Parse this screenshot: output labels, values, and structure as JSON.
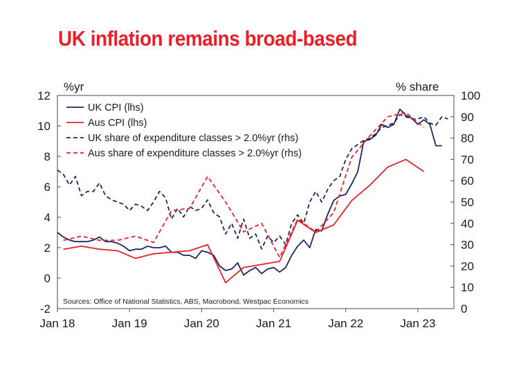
{
  "title": "UK inflation remains broad-based",
  "chart_data": {
    "type": "line",
    "title": "UK inflation remains broad-based",
    "y_left_label": "%yr",
    "y_right_label": "% share",
    "y_left_range": [
      -2,
      12
    ],
    "y_right_range": [
      0,
      100
    ],
    "y_left_ticks": [
      "-2",
      "0",
      "2",
      "4",
      "6",
      "8",
      "10",
      "12"
    ],
    "y_right_ticks": [
      "0",
      "10",
      "20",
      "30",
      "40",
      "50",
      "60",
      "70",
      "80",
      "90",
      "100"
    ],
    "x_range": [
      2018.0,
      2023.5
    ],
    "x_ticks": [
      {
        "x": 2018,
        "label": "Jan 18"
      },
      {
        "x": 2019,
        "label": "Jan 19"
      },
      {
        "x": 2020,
        "label": "Jan 20"
      },
      {
        "x": 2021,
        "label": "Jan 21"
      },
      {
        "x": 2022,
        "label": "Jan 22"
      },
      {
        "x": 2023,
        "label": "Jan 23"
      }
    ],
    "source": "Sources: Office of National Statistics, ABS, Macrobond, Westpac Economics",
    "grid": false,
    "legend_position": "top-left",
    "series": [
      {
        "name": "UK CPI (lhs)",
        "axis": "left",
        "color": "#1f2360",
        "dash": false,
        "points": [
          [
            2018.0,
            3.0
          ],
          [
            2018.083,
            2.7
          ],
          [
            2018.167,
            2.5
          ],
          [
            2018.25,
            2.4
          ],
          [
            2018.333,
            2.4
          ],
          [
            2018.417,
            2.4
          ],
          [
            2018.5,
            2.5
          ],
          [
            2018.583,
            2.7
          ],
          [
            2018.667,
            2.4
          ],
          [
            2018.75,
            2.4
          ],
          [
            2018.833,
            2.3
          ],
          [
            2018.917,
            2.1
          ],
          [
            2019.0,
            1.8
          ],
          [
            2019.083,
            1.9
          ],
          [
            2019.167,
            1.9
          ],
          [
            2019.25,
            2.1
          ],
          [
            2019.333,
            2.0
          ],
          [
            2019.417,
            2.0
          ],
          [
            2019.5,
            2.1
          ],
          [
            2019.583,
            1.7
          ],
          [
            2019.667,
            1.7
          ],
          [
            2019.75,
            1.5
          ],
          [
            2019.833,
            1.5
          ],
          [
            2019.917,
            1.3
          ],
          [
            2020.0,
            1.8
          ],
          [
            2020.083,
            1.7
          ],
          [
            2020.167,
            1.5
          ],
          [
            2020.25,
            0.8
          ],
          [
            2020.333,
            0.5
          ],
          [
            2020.417,
            0.6
          ],
          [
            2020.5,
            1.0
          ],
          [
            2020.583,
            0.2
          ],
          [
            2020.667,
            0.5
          ],
          [
            2020.75,
            0.7
          ],
          [
            2020.833,
            0.3
          ],
          [
            2020.917,
            0.6
          ],
          [
            2021.0,
            0.7
          ],
          [
            2021.083,
            0.4
          ],
          [
            2021.167,
            0.7
          ],
          [
            2021.25,
            1.5
          ],
          [
            2021.333,
            2.1
          ],
          [
            2021.417,
            2.5
          ],
          [
            2021.5,
            2.0
          ],
          [
            2021.583,
            3.2
          ],
          [
            2021.667,
            3.1
          ],
          [
            2021.75,
            4.2
          ],
          [
            2021.833,
            5.1
          ],
          [
            2021.917,
            5.4
          ],
          [
            2022.0,
            5.5
          ],
          [
            2022.083,
            6.2
          ],
          [
            2022.167,
            7.0
          ],
          [
            2022.25,
            9.0
          ],
          [
            2022.333,
            9.1
          ],
          [
            2022.417,
            9.4
          ],
          [
            2022.5,
            10.1
          ],
          [
            2022.583,
            9.9
          ],
          [
            2022.667,
            10.1
          ],
          [
            2022.75,
            11.1
          ],
          [
            2022.833,
            10.7
          ],
          [
            2022.917,
            10.5
          ],
          [
            2023.0,
            10.1
          ],
          [
            2023.083,
            10.4
          ],
          [
            2023.167,
            10.1
          ],
          [
            2023.25,
            8.7
          ],
          [
            2023.333,
            8.7
          ]
        ]
      },
      {
        "name": "Aus CPI (lhs)",
        "axis": "left",
        "color": "#e8202a",
        "dash": false,
        "points": [
          [
            2018.083,
            1.9
          ],
          [
            2018.333,
            2.1
          ],
          [
            2018.583,
            1.9
          ],
          [
            2018.833,
            1.8
          ],
          [
            2019.083,
            1.3
          ],
          [
            2019.333,
            1.6
          ],
          [
            2019.583,
            1.7
          ],
          [
            2019.833,
            1.8
          ],
          [
            2020.083,
            2.2
          ],
          [
            2020.333,
            -0.3
          ],
          [
            2020.583,
            0.7
          ],
          [
            2020.833,
            0.9
          ],
          [
            2021.083,
            1.1
          ],
          [
            2021.333,
            3.8
          ],
          [
            2021.583,
            3.0
          ],
          [
            2021.833,
            3.5
          ],
          [
            2022.083,
            5.1
          ],
          [
            2022.333,
            6.1
          ],
          [
            2022.583,
            7.3
          ],
          [
            2022.833,
            7.8
          ],
          [
            2023.083,
            7.0
          ]
        ]
      },
      {
        "name": "UK share of expenditure classes > 2.0%yr (rhs)",
        "axis": "right",
        "color": "#1f2360",
        "dash": true,
        "points": [
          [
            2018.0,
            65
          ],
          [
            2018.083,
            63
          ],
          [
            2018.167,
            58
          ],
          [
            2018.25,
            62
          ],
          [
            2018.333,
            53
          ],
          [
            2018.417,
            55
          ],
          [
            2018.5,
            55
          ],
          [
            2018.583,
            59
          ],
          [
            2018.667,
            53
          ],
          [
            2018.75,
            51
          ],
          [
            2018.833,
            50
          ],
          [
            2018.917,
            49
          ],
          [
            2019.0,
            46
          ],
          [
            2019.083,
            49
          ],
          [
            2019.167,
            48
          ],
          [
            2019.25,
            46
          ],
          [
            2019.333,
            50
          ],
          [
            2019.417,
            55
          ],
          [
            2019.5,
            52
          ],
          [
            2019.583,
            42
          ],
          [
            2019.667,
            47
          ],
          [
            2019.75,
            43
          ],
          [
            2019.833,
            48
          ],
          [
            2019.917,
            46
          ],
          [
            2020.0,
            47
          ],
          [
            2020.083,
            51
          ],
          [
            2020.167,
            45
          ],
          [
            2020.25,
            43
          ],
          [
            2020.333,
            35
          ],
          [
            2020.417,
            40
          ],
          [
            2020.5,
            33
          ],
          [
            2020.583,
            42
          ],
          [
            2020.667,
            33
          ],
          [
            2020.75,
            35
          ],
          [
            2020.833,
            28
          ],
          [
            2020.917,
            34
          ],
          [
            2021.0,
            31
          ],
          [
            2021.083,
            34
          ],
          [
            2021.167,
            30
          ],
          [
            2021.25,
            40
          ],
          [
            2021.333,
            44
          ],
          [
            2021.417,
            40
          ],
          [
            2021.5,
            50
          ],
          [
            2021.583,
            55
          ],
          [
            2021.667,
            50
          ],
          [
            2021.75,
            56
          ],
          [
            2021.833,
            60
          ],
          [
            2021.917,
            62
          ],
          [
            2022.0,
            70
          ],
          [
            2022.083,
            75
          ],
          [
            2022.167,
            77
          ],
          [
            2022.25,
            79
          ],
          [
            2022.333,
            80
          ],
          [
            2022.417,
            82
          ],
          [
            2022.5,
            85
          ],
          [
            2022.583,
            86
          ],
          [
            2022.667,
            87
          ],
          [
            2022.75,
            91
          ],
          [
            2022.833,
            90
          ],
          [
            2022.917,
            89
          ],
          [
            2023.0,
            89
          ],
          [
            2023.083,
            90
          ],
          [
            2023.167,
            87
          ],
          [
            2023.25,
            86
          ],
          [
            2023.333,
            90
          ],
          [
            2023.417,
            89
          ]
        ]
      },
      {
        "name": "Aus share of expenditure classes > 2.0%yr (rhs)",
        "axis": "right",
        "color": "#e8202a",
        "dash": true,
        "points": [
          [
            2018.083,
            32
          ],
          [
            2018.333,
            34
          ],
          [
            2018.583,
            32
          ],
          [
            2018.833,
            32
          ],
          [
            2019.083,
            34
          ],
          [
            2019.333,
            31
          ],
          [
            2019.583,
            46
          ],
          [
            2019.833,
            47
          ],
          [
            2020.083,
            62
          ],
          [
            2020.333,
            50
          ],
          [
            2020.583,
            36
          ],
          [
            2020.833,
            40
          ],
          [
            2021.083,
            24
          ],
          [
            2021.333,
            42
          ],
          [
            2021.583,
            36
          ],
          [
            2021.833,
            45
          ],
          [
            2022.083,
            71
          ],
          [
            2022.333,
            81
          ],
          [
            2022.583,
            90
          ],
          [
            2022.833,
            92
          ],
          [
            2023.083,
            85
          ]
        ]
      }
    ]
  }
}
